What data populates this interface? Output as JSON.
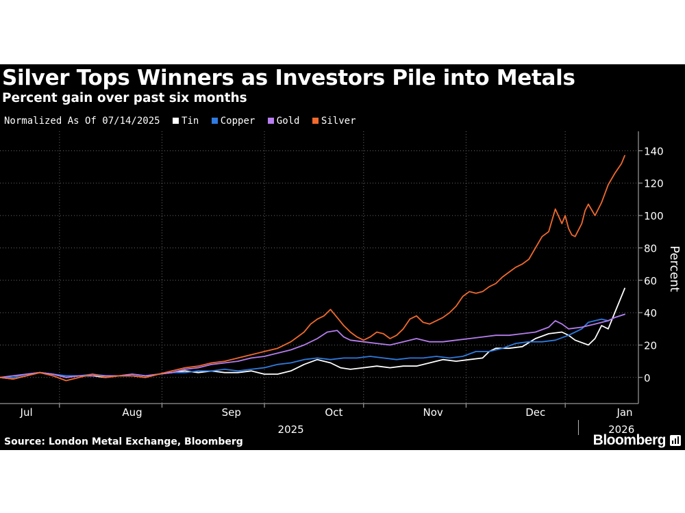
{
  "header": {
    "title": "Silver Tops Winners as Investors Pile into Metals",
    "subtitle": "Percent gain over past six months"
  },
  "legend": {
    "prefix": "Normalized As Of 07/14/2025",
    "items": [
      {
        "label": "Tin",
        "color": "#ffffff"
      },
      {
        "label": "Copper",
        "color": "#2f7be0"
      },
      {
        "label": "Gold",
        "color": "#b77ef0"
      },
      {
        "label": "Silver",
        "color": "#f26a2e"
      }
    ]
  },
  "footer": {
    "source": "Source: London Metal Exchange, Bloomberg",
    "brand": "Bloomberg"
  },
  "chart_data": {
    "type": "line",
    "ylabel": "Percent",
    "ylim": [
      -17,
      152
    ],
    "yticks": [
      0,
      20,
      40,
      60,
      80,
      100,
      120,
      140
    ],
    "xlim": [
      0,
      184
    ],
    "month_labels": [
      {
        "label": "Jul",
        "x": 8
      },
      {
        "label": "Aug",
        "x": 40
      },
      {
        "label": "Sep",
        "x": 70
      },
      {
        "label": "Oct",
        "x": 101
      },
      {
        "label": "Nov",
        "x": 131
      },
      {
        "label": "Dec",
        "x": 162
      },
      {
        "label": "Jan",
        "x": 189
      }
    ],
    "month_boundaries": [
      18,
      49,
      80,
      110,
      141,
      171
    ],
    "year_labels": [
      {
        "label": "2025",
        "x": 88
      },
      {
        "label": "2026",
        "x": 188
      }
    ],
    "year_divider_x": 175,
    "series": [
      {
        "name": "Tin",
        "color": "#ffffff",
        "x": [
          0,
          4,
          8,
          12,
          16,
          20,
          24,
          28,
          32,
          36,
          40,
          44,
          48,
          52,
          56,
          60,
          64,
          68,
          72,
          76,
          80,
          84,
          88,
          92,
          96,
          98,
          100,
          103,
          106,
          110,
          114,
          118,
          122,
          126,
          130,
          134,
          138,
          142,
          146,
          148,
          150,
          154,
          158,
          162,
          166,
          170,
          172,
          174,
          178,
          180,
          182,
          184,
          186,
          189
        ],
        "values": [
          0,
          -1,
          1,
          3,
          2,
          0,
          1,
          1,
          0,
          1,
          1,
          0,
          2,
          3,
          4,
          3,
          4,
          3,
          3,
          4,
          2,
          2,
          4,
          8,
          11,
          10,
          9,
          6,
          5,
          6,
          7,
          6,
          7,
          7,
          9,
          11,
          10,
          11,
          12,
          16,
          18,
          18,
          19,
          24,
          27,
          28,
          26,
          23,
          20,
          24,
          32,
          30,
          40,
          55
        ]
      },
      {
        "name": "Copper",
        "color": "#2f7be0",
        "x": [
          0,
          4,
          8,
          12,
          16,
          20,
          24,
          28,
          32,
          36,
          40,
          44,
          48,
          52,
          56,
          60,
          64,
          68,
          72,
          76,
          80,
          84,
          88,
          92,
          96,
          100,
          104,
          108,
          112,
          116,
          120,
          124,
          128,
          132,
          136,
          140,
          144,
          148,
          152,
          156,
          160,
          164,
          168,
          172,
          176,
          178,
          180,
          182,
          184,
          186,
          189
        ],
        "values": [
          0,
          0,
          2,
          3,
          2,
          1,
          1,
          2,
          1,
          1,
          2,
          1,
          2,
          3,
          3,
          4,
          4,
          5,
          4,
          5,
          6,
          8,
          9,
          11,
          12,
          11,
          12,
          12,
          13,
          12,
          11,
          12,
          12,
          13,
          12,
          13,
          16,
          16,
          18,
          21,
          22,
          22,
          23,
          26,
          30,
          34,
          35,
          36,
          35,
          37,
          39
        ]
      },
      {
        "name": "Gold",
        "color": "#b77ef0",
        "x": [
          0,
          4,
          8,
          12,
          16,
          20,
          24,
          28,
          32,
          36,
          40,
          44,
          48,
          52,
          56,
          60,
          64,
          68,
          72,
          76,
          80,
          84,
          88,
          92,
          96,
          99,
          102,
          104,
          106,
          110,
          114,
          118,
          122,
          126,
          130,
          134,
          138,
          142,
          146,
          150,
          154,
          158,
          162,
          166,
          168,
          170,
          172,
          176,
          180,
          184,
          186,
          189
        ],
        "values": [
          0,
          1,
          2,
          3,
          2,
          0,
          1,
          1,
          1,
          1,
          2,
          1,
          2,
          3,
          5,
          6,
          8,
          9,
          10,
          12,
          13,
          15,
          17,
          20,
          24,
          28,
          29,
          25,
          23,
          22,
          21,
          20,
          22,
          24,
          22,
          22,
          23,
          24,
          25,
          26,
          26,
          27,
          28,
          31,
          35,
          33,
          30,
          31,
          33,
          35,
          37,
          39
        ]
      },
      {
        "name": "Silver",
        "color": "#f26a2e",
        "x": [
          0,
          4,
          8,
          12,
          16,
          20,
          24,
          28,
          32,
          36,
          40,
          44,
          48,
          52,
          56,
          60,
          64,
          68,
          72,
          76,
          80,
          84,
          88,
          90,
          92,
          94,
          96,
          98,
          100,
          102,
          104,
          106,
          108,
          110,
          112,
          114,
          116,
          118,
          120,
          122,
          124,
          126,
          128,
          130,
          132,
          134,
          136,
          138,
          140,
          142,
          144,
          146,
          148,
          150,
          152,
          154,
          156,
          158,
          160,
          162,
          164,
          166,
          168,
          170,
          171,
          172,
          173,
          174,
          176,
          177,
          178,
          180,
          182,
          184,
          186,
          188,
          189
        ],
        "values": [
          0,
          -1,
          1,
          3,
          1,
          -2,
          0,
          2,
          0,
          1,
          1,
          0,
          2,
          4,
          6,
          7,
          9,
          10,
          12,
          14,
          16,
          18,
          22,
          25,
          28,
          33,
          36,
          38,
          42,
          37,
          32,
          28,
          25,
          23,
          25,
          28,
          27,
          24,
          26,
          30,
          36,
          38,
          34,
          33,
          35,
          37,
          40,
          44,
          50,
          53,
          52,
          53,
          56,
          58,
          62,
          65,
          68,
          70,
          73,
          80,
          87,
          90,
          104,
          95,
          100,
          92,
          88,
          87,
          95,
          103,
          107,
          100,
          108,
          119,
          126,
          132,
          137
        ]
      }
    ]
  }
}
